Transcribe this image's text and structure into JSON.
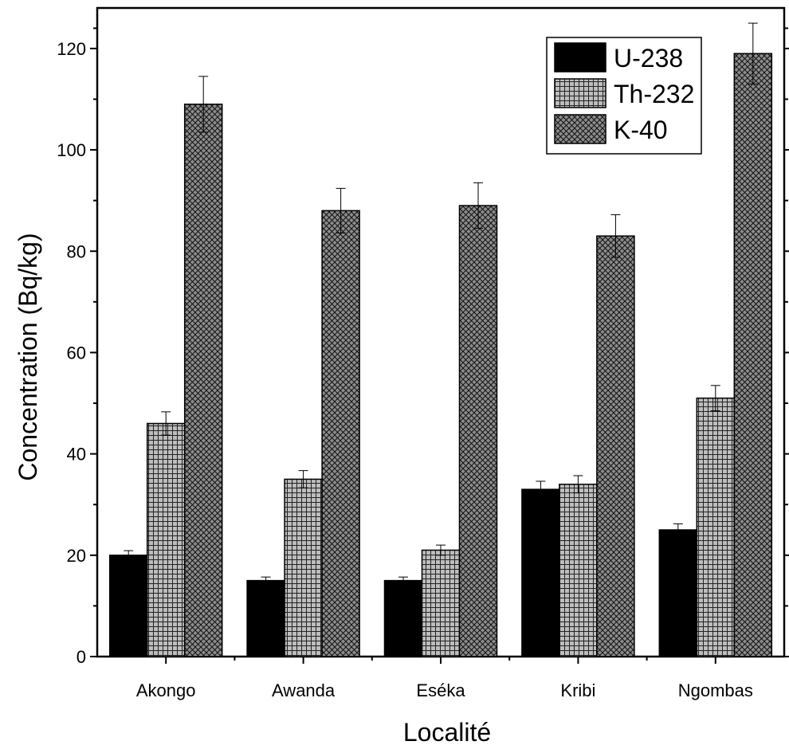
{
  "chart_data": {
    "type": "bar",
    "title": "",
    "xlabel": "Localité",
    "ylabel": "Concentration (Bq/kg)",
    "ylim": [
      0,
      128
    ],
    "yticks": [
      0,
      20,
      40,
      60,
      80,
      100,
      120
    ],
    "grid": false,
    "legend_position": "top-right",
    "categories": [
      "Akongo",
      "Awanda",
      "Eséka",
      "Kribi",
      "Ngombas"
    ],
    "series": [
      {
        "name": "U-238",
        "pattern": "solid",
        "color": "#000000",
        "values": [
          20,
          15,
          15,
          33,
          25
        ],
        "errors": [
          0.9,
          0.7,
          0.7,
          1.6,
          1.2
        ]
      },
      {
        "name": "Th-232",
        "pattern": "grid",
        "color": "#bdbdbd",
        "values": [
          46,
          35,
          21,
          34,
          51
        ],
        "errors": [
          2.3,
          1.7,
          1.0,
          1.7,
          2.5
        ]
      },
      {
        "name": "K-40",
        "pattern": "crosshatch",
        "color": "#8c8c8c",
        "values": [
          109,
          88,
          89,
          83,
          119
        ],
        "errors": [
          5.5,
          4.4,
          4.5,
          4.2,
          6.0
        ]
      }
    ]
  }
}
